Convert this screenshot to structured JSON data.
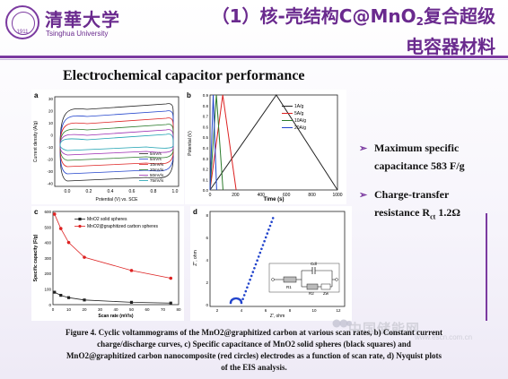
{
  "logo": {
    "cn": "清華大学",
    "en": "Tsinghua University",
    "year": "1911"
  },
  "title": {
    "line1_pre": "（1）核-壳结构C@MnO",
    "line1_sub": "2",
    "line1_post": "复合超级",
    "line2": "电容器材料"
  },
  "subtitle": "Electrochemical capacitor performance",
  "panels": {
    "a": {
      "label": "a",
      "ylabel": "Current density (A/g)",
      "xlabel": "Potential (V) vs. SCE",
      "xticks": [
        "0.0",
        "0.2",
        "0.4",
        "0.6",
        "0.8",
        "1.0"
      ],
      "yticks": [
        "30",
        "20",
        "10",
        "0",
        "-10",
        "-20",
        "-30",
        "-40"
      ],
      "legend": [
        "5mV/s",
        "5mV/s",
        "10mV/s",
        "20mV/s",
        "50mV/s",
        "75mV/s"
      ]
    },
    "b": {
      "label": "b",
      "ylabel": "Potential (V)",
      "xlabel": "Time (s)",
      "xticks": [
        "0",
        "200",
        "400",
        "600",
        "800",
        "1000"
      ],
      "yticks": [
        "0.9",
        "0.8",
        "0.7",
        "0.6",
        "0.5",
        "0.4",
        "0.3",
        "0.2",
        "0.1",
        "0.0"
      ],
      "legend": [
        "1A/g",
        "5A/g",
        "10A/g",
        "20A/g"
      ]
    },
    "c": {
      "label": "c",
      "ylabel": "Specific capacity (F/g)",
      "xlabel": "Scan rate (mV/s)",
      "xticks": [
        "0",
        "10",
        "20",
        "30",
        "40",
        "50",
        "60",
        "70",
        "80"
      ],
      "yticks": [
        "600",
        "500",
        "400",
        "300",
        "200",
        "100",
        "0"
      ],
      "legend": [
        "MnO2 solid spheres",
        "MnO2@graphitized carbon spheres"
      ]
    },
    "d": {
      "label": "d",
      "ylabel": "Z'', ohm",
      "xlabel": "Z', ohm",
      "xticks": [
        "2",
        "4",
        "6",
        "8",
        "10",
        "12"
      ],
      "yticks": [
        "8",
        "6",
        "4",
        "2",
        "0"
      ],
      "circuit": {
        "cdl": "Cdl",
        "r1": "R1",
        "r2": "R2",
        "zw": "Zw"
      }
    }
  },
  "chart_data": [
    {
      "type": "line",
      "id": "c-specific-capacitance",
      "xlabel": "Scan rate (mV/s)",
      "ylabel": "Specific capacity (F/g)",
      "xlim": [
        0,
        80
      ],
      "ylim": [
        0,
        600
      ],
      "series": [
        {
          "name": "MnO2 solid spheres",
          "color": "#222222",
          "x": [
            1,
            5,
            10,
            20,
            50,
            75
          ],
          "values": [
            80,
            60,
            45,
            30,
            15,
            10
          ]
        },
        {
          "name": "MnO2@graphitized carbon spheres",
          "color": "#dd2222",
          "x": [
            1,
            5,
            10,
            20,
            50,
            75
          ],
          "values": [
            583,
            490,
            400,
            305,
            220,
            170
          ]
        }
      ]
    },
    {
      "type": "line",
      "id": "b-charge-discharge",
      "xlabel": "Time (s)",
      "ylabel": "Potential (V)",
      "xlim": [
        0,
        1000
      ],
      "ylim": [
        0,
        0.9
      ],
      "series": [
        {
          "name": "1A/g",
          "color": "#222222",
          "x": [
            0,
            520,
            1000
          ],
          "values": [
            0,
            0.9,
            0
          ]
        },
        {
          "name": "5A/g",
          "color": "#dd2222",
          "x": [
            0,
            100,
            205
          ],
          "values": [
            0,
            0.9,
            0
          ]
        },
        {
          "name": "10A/g",
          "color": "#2a7a2a",
          "x": [
            0,
            50,
            102
          ],
          "values": [
            0,
            0.9,
            0
          ]
        },
        {
          "name": "20A/g",
          "color": "#2244cc",
          "x": [
            0,
            25,
            52
          ],
          "values": [
            0,
            0.9,
            0
          ]
        }
      ]
    }
  ],
  "bullets": [
    {
      "line1": "Maximum specific",
      "line2": "capacitance 583 F/g"
    },
    {
      "line1": "Charge-transfer",
      "line2_pre": "resistance R",
      "line2_sub": "ct",
      "line2_post": " 1.2Ω"
    }
  ],
  "caption": {
    "line1": "Figure 4. Cyclic voltammograms of the MnO2@graphitized carbon at various scan rates, b) Constant current",
    "line2": "charge/discharge curves, c) Specific capacitance of MnO2 solid spheres (black squares) and",
    "line3": "MnO2@graphitized carbon nanocomposite (red circles) electrodes as a function of scan rate, d) Nyquist plots",
    "line4": "of the EIS analysis."
  },
  "watermark": {
    "text": "中国储能网",
    "url": "www.escn.com.cn"
  }
}
